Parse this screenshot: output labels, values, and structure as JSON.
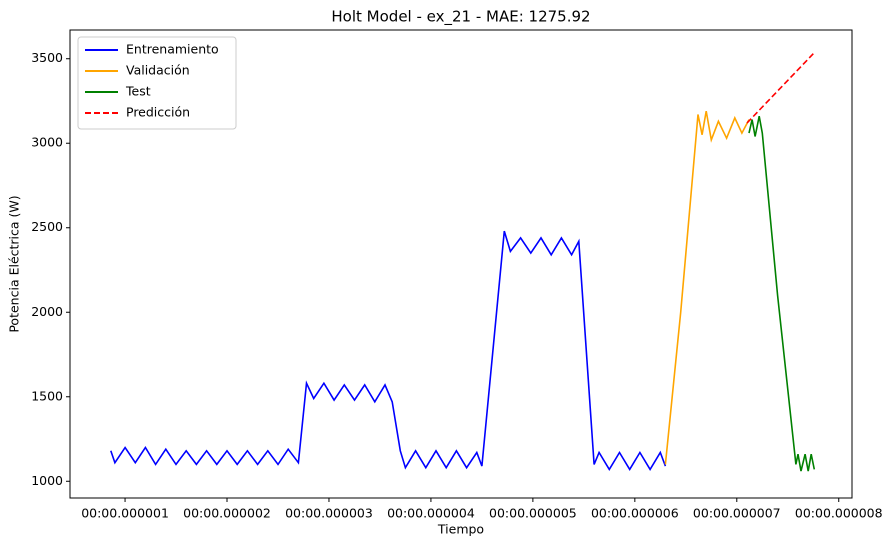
{
  "chart_data": {
    "type": "line",
    "title": "Holt Model - ex_21 - MAE: 1275.92",
    "x_label": "Tiempo",
    "y_label": "Potencia Eléctrica (W)",
    "xlim": [
      0.46,
      8.13
    ],
    "ylim": [
      901,
      3670
    ],
    "xticks": [
      {
        "value": 1,
        "label": "00:00.000001"
      },
      {
        "value": 2,
        "label": "00:00.000002"
      },
      {
        "value": 3,
        "label": "00:00.000003"
      },
      {
        "value": 4,
        "label": "00:00.000004"
      },
      {
        "value": 5,
        "label": "00:00.000005"
      },
      {
        "value": 6,
        "label": "00:00.000006"
      },
      {
        "value": 7,
        "label": "00:00.000007"
      },
      {
        "value": 8,
        "label": "00:00.000008"
      }
    ],
    "yticks": [
      1000,
      1500,
      2000,
      2500,
      3000,
      3500
    ],
    "legend": "upper left",
    "series": [
      {
        "name": "Entrenamiento",
        "color": "#0000ff",
        "style": "solid",
        "x": [
          0.86,
          0.9,
          1.0,
          1.1,
          1.2,
          1.3,
          1.4,
          1.5,
          1.6,
          1.7,
          1.8,
          1.9,
          2.0,
          2.1,
          2.2,
          2.3,
          2.4,
          2.5,
          2.6,
          2.7,
          2.78,
          2.85,
          2.95,
          3.05,
          3.15,
          3.25,
          3.35,
          3.45,
          3.55,
          3.62,
          3.7,
          3.75,
          3.85,
          3.95,
          4.05,
          4.15,
          4.25,
          4.35,
          4.45,
          4.5,
          4.72,
          4.78,
          4.88,
          4.98,
          5.08,
          5.18,
          5.28,
          5.38,
          5.45,
          5.6,
          5.65,
          5.75,
          5.85,
          5.95,
          6.05,
          6.15,
          6.25,
          6.3
        ],
        "values": [
          1180,
          1110,
          1200,
          1110,
          1200,
          1100,
          1190,
          1100,
          1180,
          1100,
          1180,
          1100,
          1180,
          1100,
          1180,
          1100,
          1180,
          1100,
          1190,
          1110,
          1580,
          1490,
          1580,
          1480,
          1570,
          1480,
          1570,
          1470,
          1570,
          1470,
          1180,
          1080,
          1180,
          1080,
          1180,
          1080,
          1180,
          1080,
          1170,
          1090,
          2480,
          2360,
          2440,
          2350,
          2440,
          2340,
          2440,
          2340,
          2420,
          1100,
          1170,
          1070,
          1170,
          1070,
          1170,
          1070,
          1170,
          1090
        ]
      },
      {
        "name": "Validación",
        "color": "#ffa500",
        "style": "solid",
        "x": [
          6.3,
          6.45,
          6.62,
          6.66,
          6.7,
          6.75,
          6.82,
          6.9,
          6.98,
          7.05,
          7.12
        ],
        "values": [
          1100,
          2000,
          3170,
          3050,
          3190,
          3020,
          3130,
          3030,
          3150,
          3060,
          3140
        ]
      },
      {
        "name": "Test",
        "color": "#008000",
        "style": "solid",
        "x": [
          7.12,
          7.15,
          7.18,
          7.22,
          7.25,
          7.4,
          7.58,
          7.6,
          7.63,
          7.67,
          7.7,
          7.73,
          7.76
        ],
        "values": [
          3060,
          3140,
          3040,
          3160,
          3060,
          2100,
          1100,
          1160,
          1060,
          1160,
          1060,
          1160,
          1070
        ]
      },
      {
        "name": "Predicción",
        "color": "#ff0000",
        "style": "dashed",
        "x": [
          7.1,
          7.75
        ],
        "values": [
          3120,
          3530
        ]
      }
    ]
  }
}
